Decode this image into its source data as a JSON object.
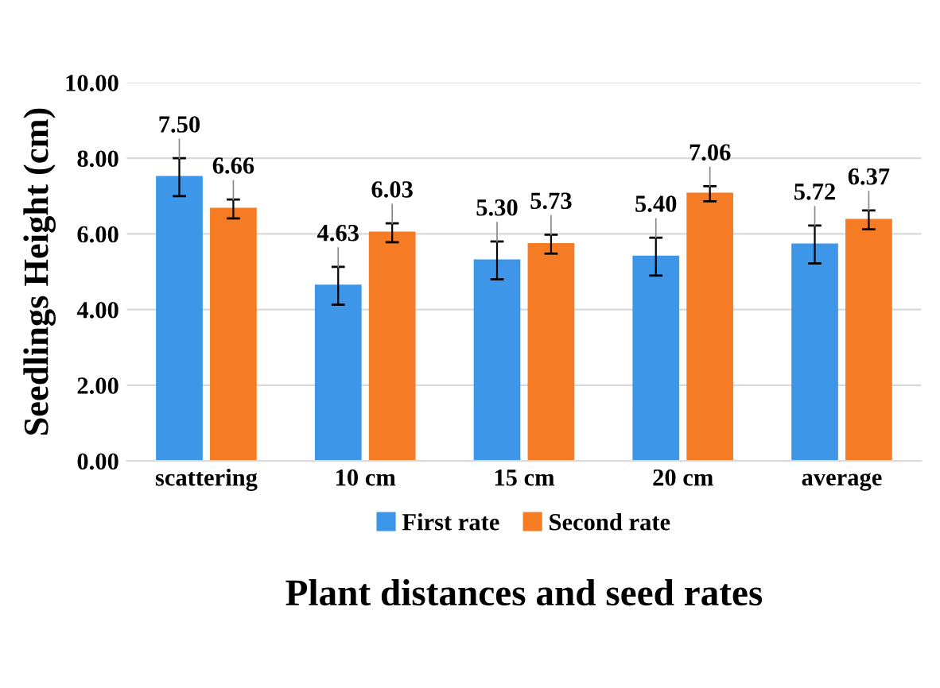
{
  "chart_data": {
    "type": "bar",
    "xlabel": "Plant distances and seed rates",
    "ylabel": "Seedlings Height (cm)",
    "categories": [
      "scattering",
      "10 cm",
      "15 cm",
      "20 cm",
      "average"
    ],
    "series": [
      {
        "name": "First rate",
        "color": "#3d96e8",
        "values": [
          7.5,
          4.63,
          5.3,
          5.4,
          5.72
        ],
        "errors": [
          0.5,
          0.5,
          0.5,
          0.5,
          0.5
        ],
        "value_labels": [
          "7.50",
          "4.63",
          "5.30",
          "5.40",
          "5.72"
        ]
      },
      {
        "name": "Second rate",
        "color": "#f57b25",
        "values": [
          6.66,
          6.03,
          5.73,
          7.06,
          6.37
        ],
        "errors": [
          0.25,
          0.25,
          0.25,
          0.2,
          0.25
        ],
        "value_labels": [
          "6.66",
          "6.03",
          "5.73",
          "7.06",
          "6.37"
        ]
      }
    ],
    "ylim": [
      0,
      10
    ],
    "yticks": [
      {
        "value": 0,
        "label": "0.00"
      },
      {
        "value": 2,
        "label": "2.00"
      },
      {
        "value": 4,
        "label": "4.00"
      },
      {
        "value": 6,
        "label": "6.00"
      },
      {
        "value": 8,
        "label": "8.00"
      },
      {
        "value": 10,
        "label": "10.00"
      }
    ],
    "grid": "y",
    "legend": "bottom"
  }
}
